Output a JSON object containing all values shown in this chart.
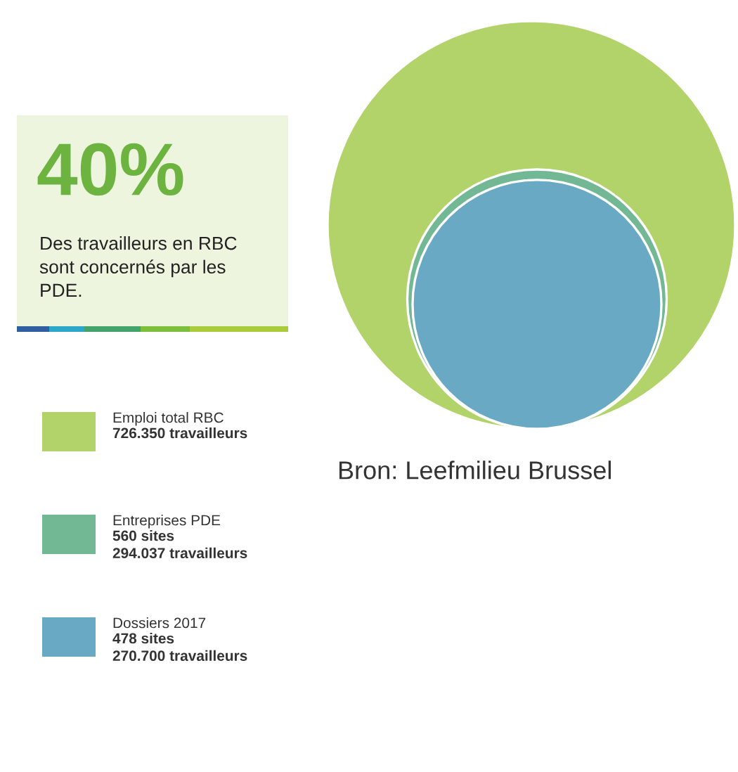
{
  "chart_data": {
    "type": "other",
    "categories": [
      "Emploi total RBC",
      "Entreprises PDE",
      "Dossiers 2017"
    ],
    "values": [
      726350,
      294037,
      270700
    ],
    "value_labels": [
      "726.350 travailleurs",
      "560 sites\n294.037 travailleurs",
      "478 sites\n270.700 travailleurs"
    ],
    "colors": [
      "#b2d36a",
      "#72b894",
      "#6aa9c4"
    ],
    "annotations": [
      "40%",
      "Des travailleurs en RBC\nsont concernés par les\nPDE.",
      "Bron: Leefmilieu Brussel"
    ]
  }
}
